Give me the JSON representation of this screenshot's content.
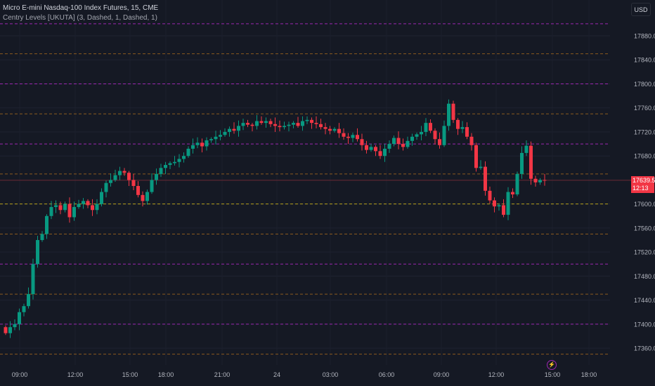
{
  "header": {
    "symbol_title": "Micro E-mini Nasdaq-100 Index Futures, 15, CME",
    "indicator": "Centry Levels [UKUTA] (3, Dashed, 1, Dashed, 1)",
    "currency_button": "USD"
  },
  "price_tag": {
    "price": "17639.50",
    "countdown": "12:13",
    "color": "#f23645"
  },
  "events_icon": "lightning-icon",
  "colors": {
    "background": "#151924",
    "up": "#089981",
    "down": "#f23645",
    "major_level": "#9c27b0",
    "minor_level": "#8a5a1e",
    "key_level": "#b8a21a",
    "grid": "#1f2331"
  },
  "chart_data": {
    "type": "candlestick",
    "title": "Micro E-mini Nasdaq-100 Index Futures, 15, CME",
    "ylim": [
      17330,
      17920
    ],
    "y_ticks": [
      "17880.00",
      "17840.00",
      "17800.00",
      "17760.00",
      "17720.00",
      "17680.00",
      "17600.00",
      "17560.00",
      "17520.00",
      "17480.00",
      "17440.00",
      "17400.00",
      "17360.00"
    ],
    "x_ticks": [
      "09:00",
      "12:00",
      "15:00",
      "18:00",
      "21:00",
      "24",
      "03:00",
      "06:00",
      "09:00",
      "12:00",
      "15:00",
      "18:00"
    ],
    "levels": [
      {
        "price": 17900,
        "style": "major"
      },
      {
        "price": 17850,
        "style": "minor"
      },
      {
        "price": 17800,
        "style": "major"
      },
      {
        "price": 17750,
        "style": "minor"
      },
      {
        "price": 17700,
        "style": "major"
      },
      {
        "price": 17650,
        "style": "minor"
      },
      {
        "price": 17600,
        "style": "key"
      },
      {
        "price": 17550,
        "style": "minor"
      },
      {
        "price": 17500,
        "style": "major"
      },
      {
        "price": 17450,
        "style": "minor"
      },
      {
        "price": 17400,
        "style": "major"
      },
      {
        "price": 17350,
        "style": "minor"
      }
    ],
    "last_price": 17639.5,
    "first_open": 17395,
    "closes": [
      17385,
      17395,
      17400,
      17420,
      17430,
      17450,
      17500,
      17540,
      17550,
      17580,
      17595,
      17598,
      17590,
      17600,
      17578,
      17595,
      17600,
      17605,
      17598,
      17590,
      17600,
      17620,
      17635,
      17640,
      17648,
      17655,
      17652,
      17640,
      17630,
      17615,
      17605,
      17620,
      17640,
      17650,
      17660,
      17665,
      17668,
      17670,
      17675,
      17680,
      17692,
      17698,
      17702,
      17696,
      17706,
      17708,
      17712,
      17715,
      17720,
      17725,
      17722,
      17730,
      17735,
      17732,
      17730,
      17738,
      17735,
      17738,
      17733,
      17730,
      17728,
      17730,
      17732,
      17735,
      17730,
      17738,
      17740,
      17735,
      17733,
      17728,
      17725,
      17722,
      17725,
      17718,
      17712,
      17710,
      17715,
      17708,
      17698,
      17690,
      17695,
      17688,
      17680,
      17692,
      17700,
      17710,
      17700,
      17695,
      17705,
      17712,
      17716,
      17720,
      17735,
      17722,
      17708,
      17698,
      17730,
      17767,
      17740,
      17725,
      17728,
      17712,
      17698,
      17660,
      17662,
      17622,
      17606,
      17596,
      17598,
      17582,
      17620,
      17616,
      17650,
      17685,
      17697,
      17642,
      17636,
      17640,
      17639.5
    ]
  }
}
